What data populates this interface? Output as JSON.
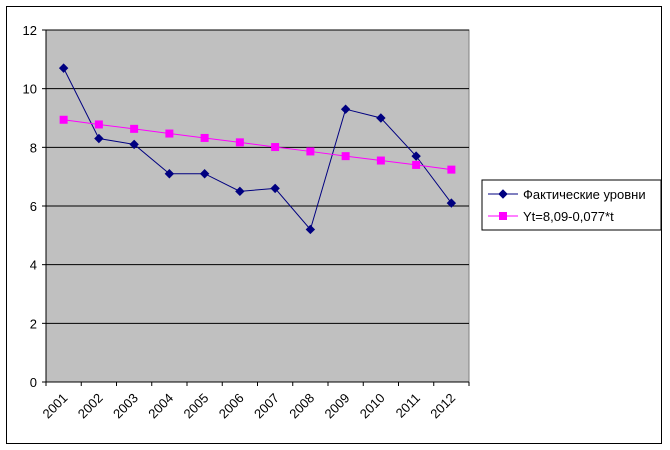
{
  "chart_data": {
    "type": "line",
    "categories": [
      "2001",
      "2002",
      "2003",
      "2004",
      "2005",
      "2006",
      "2007",
      "2008",
      "2009",
      "2010",
      "2011",
      "2012"
    ],
    "series": [
      {
        "name": "Фактические уровни",
        "values": [
          10.7,
          8.3,
          8.1,
          7.1,
          7.1,
          6.5,
          6.6,
          5.2,
          9.3,
          9.0,
          7.7,
          6.1
        ],
        "color": "#000080",
        "marker": "diamond"
      },
      {
        "name": "Yt=8,09-0,077*t",
        "values": [
          8.94,
          8.78,
          8.63,
          8.47,
          8.32,
          8.17,
          8.01,
          7.86,
          7.7,
          7.55,
          7.4,
          7.24
        ],
        "color": "#ff00ff",
        "marker": "square"
      }
    ],
    "ylim": [
      0,
      12
    ],
    "yticks": [
      "0",
      "2",
      "4",
      "6",
      "8",
      "10",
      "12"
    ],
    "grid": true,
    "plot_background": "#c0c0c0",
    "legend_position": "right"
  }
}
